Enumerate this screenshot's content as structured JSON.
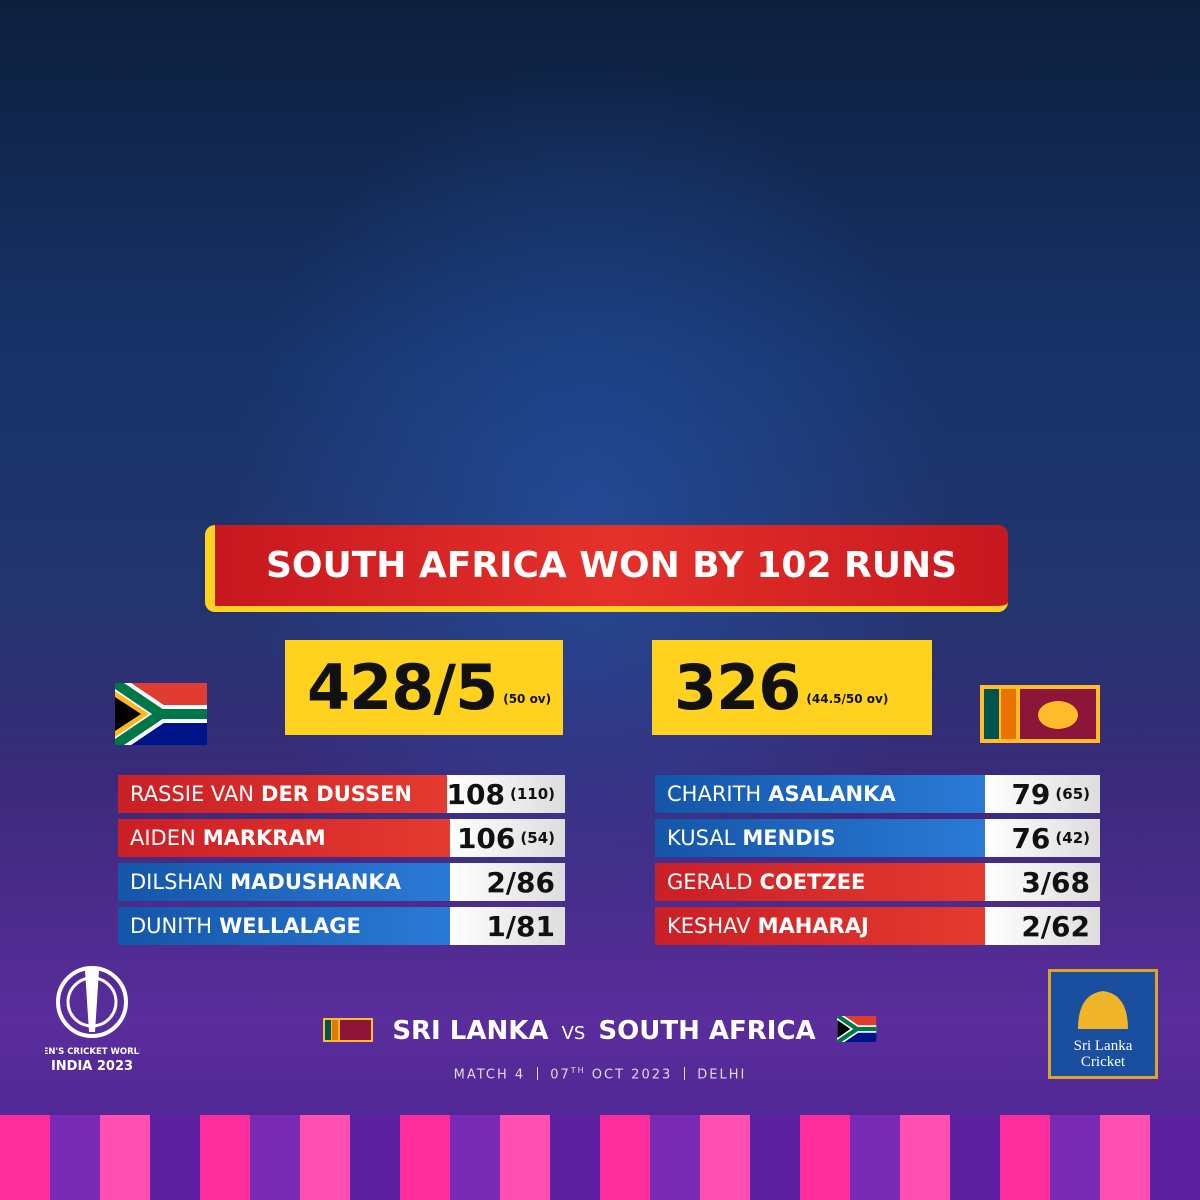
{
  "result": "SOUTH AFRICA WON BY 102 RUNS",
  "teams": [
    {
      "score": "428/5",
      "overs": "(50 ov)",
      "performers": [
        {
          "first": "RASSIE VAN",
          "last": "DER DUSSEN",
          "figure": "108",
          "balls": "(110)"
        },
        {
          "first": "AIDEN",
          "last": "MARKRAM",
          "figure": "106",
          "balls": "(54)"
        },
        {
          "first": "DILSHAN",
          "last": "MADUSHANKA",
          "figure": "2/86"
        },
        {
          "first": "DUNITH",
          "last": "WELLALAGE",
          "figure": "1/81"
        }
      ]
    },
    {
      "score": "326",
      "overs": "(44.5/50 ov)",
      "performers": [
        {
          "first": "CHARITH",
          "last": "ASALANKA",
          "figure": "79",
          "balls": "(65)"
        },
        {
          "first": "KUSAL",
          "last": "MENDIS",
          "figure": "76",
          "balls": "(42)"
        },
        {
          "first": "GERALD",
          "last": "COETZEE",
          "figure": "3/68"
        },
        {
          "first": "KESHAV",
          "last": "MAHARAJ",
          "figure": "2/62"
        }
      ]
    }
  ],
  "footer": {
    "home": "SRI LANKA",
    "vs": "VS",
    "away": "SOUTH AFRICA",
    "match": "MATCH 4",
    "day": "07",
    "day_suffix": "TH",
    "date": "OCT 2023",
    "venue": "DELHI"
  },
  "logos": {
    "event": "ICC MEN'S CRICKET WORLD CUP",
    "event_host": "INDIA 2023",
    "board_line1": "Sri Lanka",
    "board_line2": "Cricket"
  }
}
